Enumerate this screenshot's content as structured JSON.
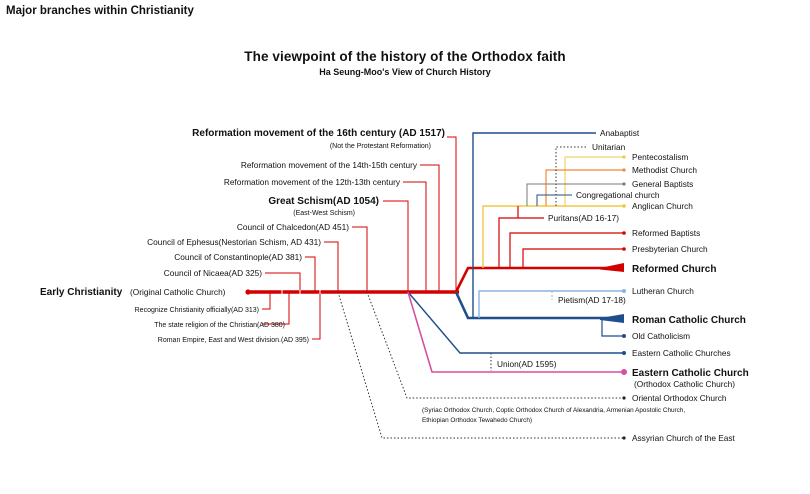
{
  "page_title": "Major branches within Christianity",
  "title": "The viewpoint of the history of the Orthodox faith",
  "subtitle": "Ha Seung-Moo's View of Church History",
  "colors": {
    "orthodox": "#d40000",
    "catholic": "#1f4e8c",
    "reformed": "#d40000",
    "methodist": "#f0883a",
    "pentecostal": "#f2c744",
    "lutheran": "#8ab4e0",
    "eastern_orthodox": "#d94fa0",
    "dotted": "#333333"
  },
  "left_events": {
    "early": {
      "name": "Early Christianity",
      "note": "(Original Catholic Church)"
    },
    "reformation_16": {
      "name": "Reformation movement of the 16th century (AD 1517)",
      "note": "(Not the Protestant Reformation)"
    },
    "reformation_14": "Reformation movement of the 14th-15th century",
    "reformation_12": "Reformation movement of the 12th-13th century",
    "great_schism": {
      "name": "Great Schism(AD 1054)",
      "note": "(East-West Schism)"
    },
    "chalcedon": "Council of Chalcedon(AD 451)",
    "ephesus": "Council of Ephesus(Nestorian Schism, AD 431)",
    "constantinople": "Council of Constantinople(AD 381)",
    "nicaea": "Council of Nicaea(AD 325)",
    "recognize": "Recognize Christianity officially(AD 313)",
    "state_religion": "The state religion of the Christian(AD 380)",
    "empire_division": "Roman Empire, East and West division.(AD 395)"
  },
  "branches": {
    "anabaptist": "Anabaptist",
    "unitarian": "Unitarian",
    "pentecostalism": "Pentecostalism",
    "methodist": "Methodist Church",
    "general_baptists": "General Baptists",
    "congregational": "Congregational church",
    "anglican": "Anglican Church",
    "puritans": "Puritans(AD 16-17)",
    "reformed_baptists": "Reformed Baptists",
    "presbyterian": "Presbyterian Church",
    "reformed": "Reformed Church",
    "lutheran": "Lutheran Church",
    "pietism": "Pietism(AD 17-18)",
    "roman_catholic": "Roman Catholic Church",
    "old_catholicism": "Old Catholicism",
    "eastern_catholic": "Eastern Catholic Churches",
    "union": "Union(AD 1595)",
    "eastern_orthodox": "Eastern Catholic Church",
    "eastern_orthodox_note": "(Orthodox Catholic Church)",
    "oriental": "Oriental Orthodox Church",
    "oriental_note1": "(Syriac Orthodox Church, Coptic Orthodox Church of Alexandria, Armenian Apostolic Church,",
    "oriental_note2": "Ethiopian Orthodox Tewahedo Church)",
    "assyrian": "Assyrian Church of the East"
  }
}
